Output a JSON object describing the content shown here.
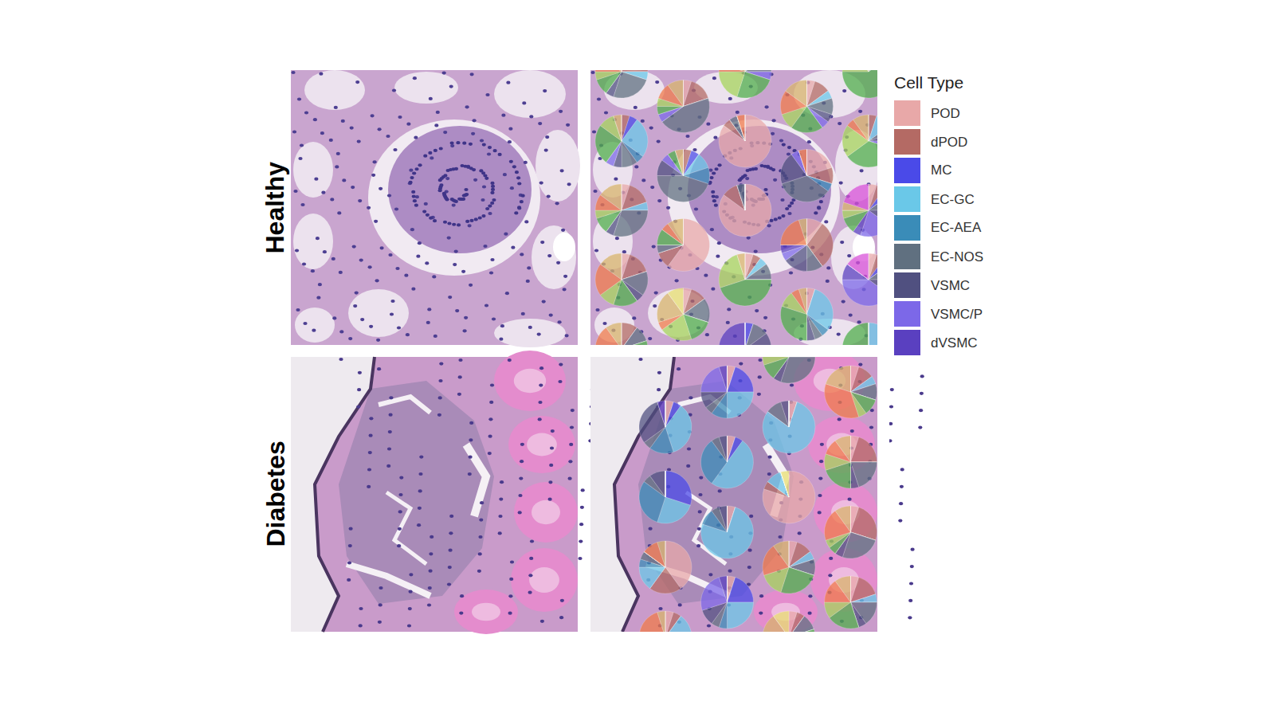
{
  "chart_data": {
    "type": "pie",
    "legend_title": "Cell Type",
    "series": [
      {
        "name": "POD",
        "color": "#e8a8a8"
      },
      {
        "name": "dPOD",
        "color": "#b46a64"
      },
      {
        "name": "MC",
        "color": "#4a4ae8"
      },
      {
        "name": "EC-GC",
        "color": "#6ac8e8"
      },
      {
        "name": "EC-AEA",
        "color": "#3a8cb8"
      },
      {
        "name": "EC-NOS",
        "color": "#607080"
      },
      {
        "name": "VSMC",
        "color": "#505080"
      },
      {
        "name": "VSMC/P",
        "color": "#7c68e8"
      },
      {
        "name": "dVSMC",
        "color": "#5a40c0"
      },
      {
        "name": null,
        "color": "#4fae4a"
      },
      {
        "name": null,
        "color": "#a6d45a"
      },
      {
        "name": null,
        "color": "#f07b4a"
      },
      {
        "name": null,
        "color": "#d8b46a"
      },
      {
        "name": null,
        "color": "#d84fd8"
      },
      {
        "name": null,
        "color": "#e8e070"
      }
    ],
    "panels": [
      {
        "label": "Healthy",
        "rows": [
          [
            [
              5,
              20,
              0,
              5,
              0,
              25,
              5,
              0,
              0,
              10,
              5,
              10,
              15,
              0,
              0
            ],
            null,
            [
              0,
              10,
              0,
              5,
              0,
              10,
              0,
              5,
              0,
              25,
              20,
              5,
              20,
              0,
              0
            ],
            null,
            [
              0,
              0,
              0,
              5,
              0,
              10,
              0,
              0,
              0,
              60,
              15,
              0,
              10,
              0,
              0
            ]
          ],
          [
            null,
            [
              5,
              15,
              0,
              0,
              0,
              45,
              0,
              5,
              0,
              5,
              5,
              10,
              10,
              0,
              0
            ],
            null,
            [
              5,
              10,
              0,
              5,
              0,
              10,
              5,
              5,
              0,
              20,
              10,
              15,
              15,
              0,
              0
            ],
            null
          ],
          [
            [
              0,
              5,
              5,
              25,
              5,
              10,
              5,
              5,
              0,
              25,
              10,
              0,
              5,
              0,
              0
            ],
            null,
            [
              85,
              5,
              0,
              0,
              0,
              5,
              0,
              0,
              0,
              0,
              0,
              5,
              0,
              0,
              0
            ],
            null,
            [
              0,
              5,
              0,
              10,
              0,
              5,
              5,
              5,
              0,
              35,
              20,
              5,
              10,
              0,
              0
            ]
          ],
          [
            null,
            [
              0,
              5,
              5,
              10,
              10,
              45,
              10,
              5,
              0,
              5,
              0,
              0,
              5,
              0,
              0
            ],
            null,
            [
              20,
              10,
              0,
              0,
              5,
              35,
              20,
              5,
              0,
              0,
              0,
              5,
              0,
              0,
              0
            ],
            null
          ],
          [
            [
              5,
              15,
              0,
              5,
              0,
              30,
              5,
              0,
              0,
              10,
              5,
              10,
              15,
              0,
              0
            ],
            null,
            [
              85,
              10,
              0,
              0,
              0,
              5,
              0,
              0,
              0,
              0,
              0,
              0,
              0,
              0,
              0
            ],
            null,
            [
              5,
              5,
              5,
              0,
              0,
              10,
              10,
              20,
              5,
              10,
              5,
              0,
              5,
              20,
              0
            ]
          ],
          [
            null,
            [
              60,
              10,
              0,
              0,
              0,
              5,
              0,
              0,
              0,
              10,
              0,
              5,
              10,
              0,
              0
            ],
            null,
            [
              10,
              30,
              0,
              0,
              0,
              10,
              15,
              5,
              5,
              0,
              0,
              20,
              5,
              0,
              0
            ],
            null
          ],
          [
            [
              5,
              15,
              0,
              0,
              0,
              15,
              5,
              0,
              0,
              15,
              10,
              20,
              15,
              0,
              0
            ],
            null,
            [
              5,
              5,
              0,
              5,
              0,
              10,
              0,
              0,
              0,
              45,
              25,
              0,
              5,
              0,
              0
            ],
            null,
            [
              5,
              5,
              5,
              0,
              0,
              10,
              10,
              40,
              10,
              0,
              0,
              0,
              0,
              15,
              0
            ]
          ],
          [
            null,
            [
              5,
              10,
              0,
              0,
              0,
              15,
              0,
              0,
              0,
              15,
              20,
              5,
              20,
              0,
              10
            ],
            null,
            [
              5,
              0,
              0,
              30,
              5,
              5,
              5,
              0,
              0,
              30,
              10,
              5,
              5,
              0,
              0
            ],
            null
          ],
          [
            [
              0,
              10,
              0,
              0,
              0,
              10,
              0,
              0,
              0,
              10,
              0,
              60,
              10,
              0,
              0
            ],
            null,
            [
              0,
              0,
              5,
              0,
              0,
              10,
              20,
              40,
              25,
              0,
              0,
              0,
              0,
              0,
              0
            ],
            null,
            [
              0,
              0,
              0,
              50,
              10,
              10,
              0,
              0,
              0,
              30,
              0,
              0,
              0,
              0,
              0
            ]
          ]
        ]
      },
      {
        "label": "Diabetes",
        "rows": [
          [
            null,
            null,
            null,
            [
              5,
              15,
              0,
              5,
              0,
              30,
              5,
              0,
              0,
              10,
              10,
              5,
              15,
              0,
              0
            ],
            null
          ],
          [
            null,
            null,
            [
              5,
              0,
              20,
              25,
              10,
              5,
              10,
              20,
              5,
              0,
              0,
              0,
              0,
              0,
              0
            ],
            null,
            [
              5,
              10,
              0,
              5,
              0,
              10,
              0,
              0,
              0,
              10,
              5,
              35,
              20,
              0,
              0
            ]
          ],
          [
            null,
            [
              5,
              0,
              5,
              35,
              15,
              5,
              30,
              0,
              5,
              0,
              0,
              0,
              0,
              0,
              0
            ],
            null,
            [
              5,
              0,
              0,
              80,
              0,
              10,
              5,
              0,
              0,
              0,
              0,
              0,
              0,
              0,
              0
            ],
            null
          ],
          [
            null,
            null,
            [
              5,
              0,
              5,
              50,
              30,
              5,
              5,
              0,
              0,
              0,
              0,
              0,
              0,
              0,
              0
            ],
            null,
            [
              5,
              20,
              0,
              0,
              0,
              20,
              5,
              0,
              0,
              20,
              10,
              10,
              10,
              0,
              0
            ]
          ],
          [
            null,
            [
              0,
              0,
              30,
              25,
              30,
              5,
              10,
              0,
              0,
              0,
              0,
              0,
              0,
              0,
              0
            ],
            null,
            [
              80,
              5,
              0,
              10,
              0,
              0,
              0,
              0,
              0,
              0,
              0,
              0,
              0,
              0,
              5
            ],
            null
          ],
          [
            null,
            null,
            [
              5,
              0,
              0,
              75,
              10,
              5,
              5,
              0,
              0,
              0,
              0,
              0,
              0,
              0,
              0
            ],
            null,
            [
              5,
              25,
              0,
              0,
              0,
              25,
              5,
              0,
              0,
              5,
              5,
              20,
              10,
              0,
              0
            ]
          ],
          [
            null,
            [
              40,
              20,
              0,
              15,
              5,
              5,
              0,
              0,
              0,
              0,
              0,
              10,
              5,
              0,
              0
            ],
            null,
            [
              5,
              10,
              0,
              5,
              0,
              10,
              0,
              0,
              0,
              25,
              15,
              20,
              10,
              0,
              0
            ],
            null
          ],
          [
            null,
            null,
            [
              5,
              0,
              20,
              25,
              5,
              5,
              10,
              25,
              5,
              0,
              0,
              0,
              0,
              0,
              0
            ],
            null,
            [
              5,
              15,
              0,
              5,
              0,
              15,
              5,
              0,
              0,
              20,
              10,
              15,
              10,
              0,
              0
            ]
          ],
          [
            null,
            [
              5,
              5,
              0,
              30,
              5,
              10,
              0,
              0,
              0,
              5,
              0,
              35,
              5,
              0,
              0
            ],
            null,
            [
              5,
              5,
              0,
              0,
              0,
              10,
              0,
              0,
              0,
              25,
              20,
              10,
              15,
              0,
              10
            ],
            null
          ]
        ]
      }
    ]
  }
}
